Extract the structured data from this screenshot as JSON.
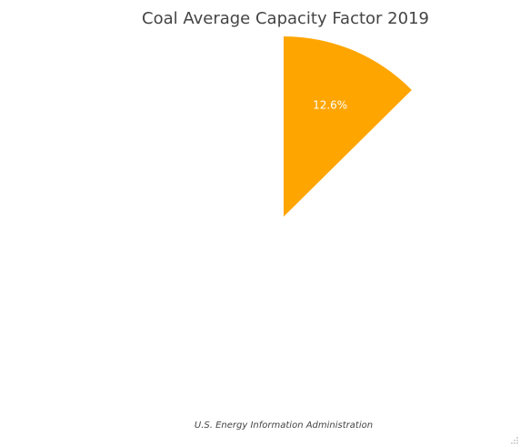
{
  "chart_title": "Coal Average Capacity Factor 2019",
  "source_note": "U.S. Energy Information Administration",
  "colors": {
    "slice": "#FFA500",
    "label_text": "#ffffff",
    "title_text": "#444444"
  },
  "chart_data": {
    "type": "pie",
    "title": "Coal Average Capacity Factor 2019",
    "slices": [
      {
        "label": "12.6%",
        "value": 12.6
      }
    ],
    "start_angle_deg": 0,
    "direction": "clockwise",
    "legend": "none"
  }
}
